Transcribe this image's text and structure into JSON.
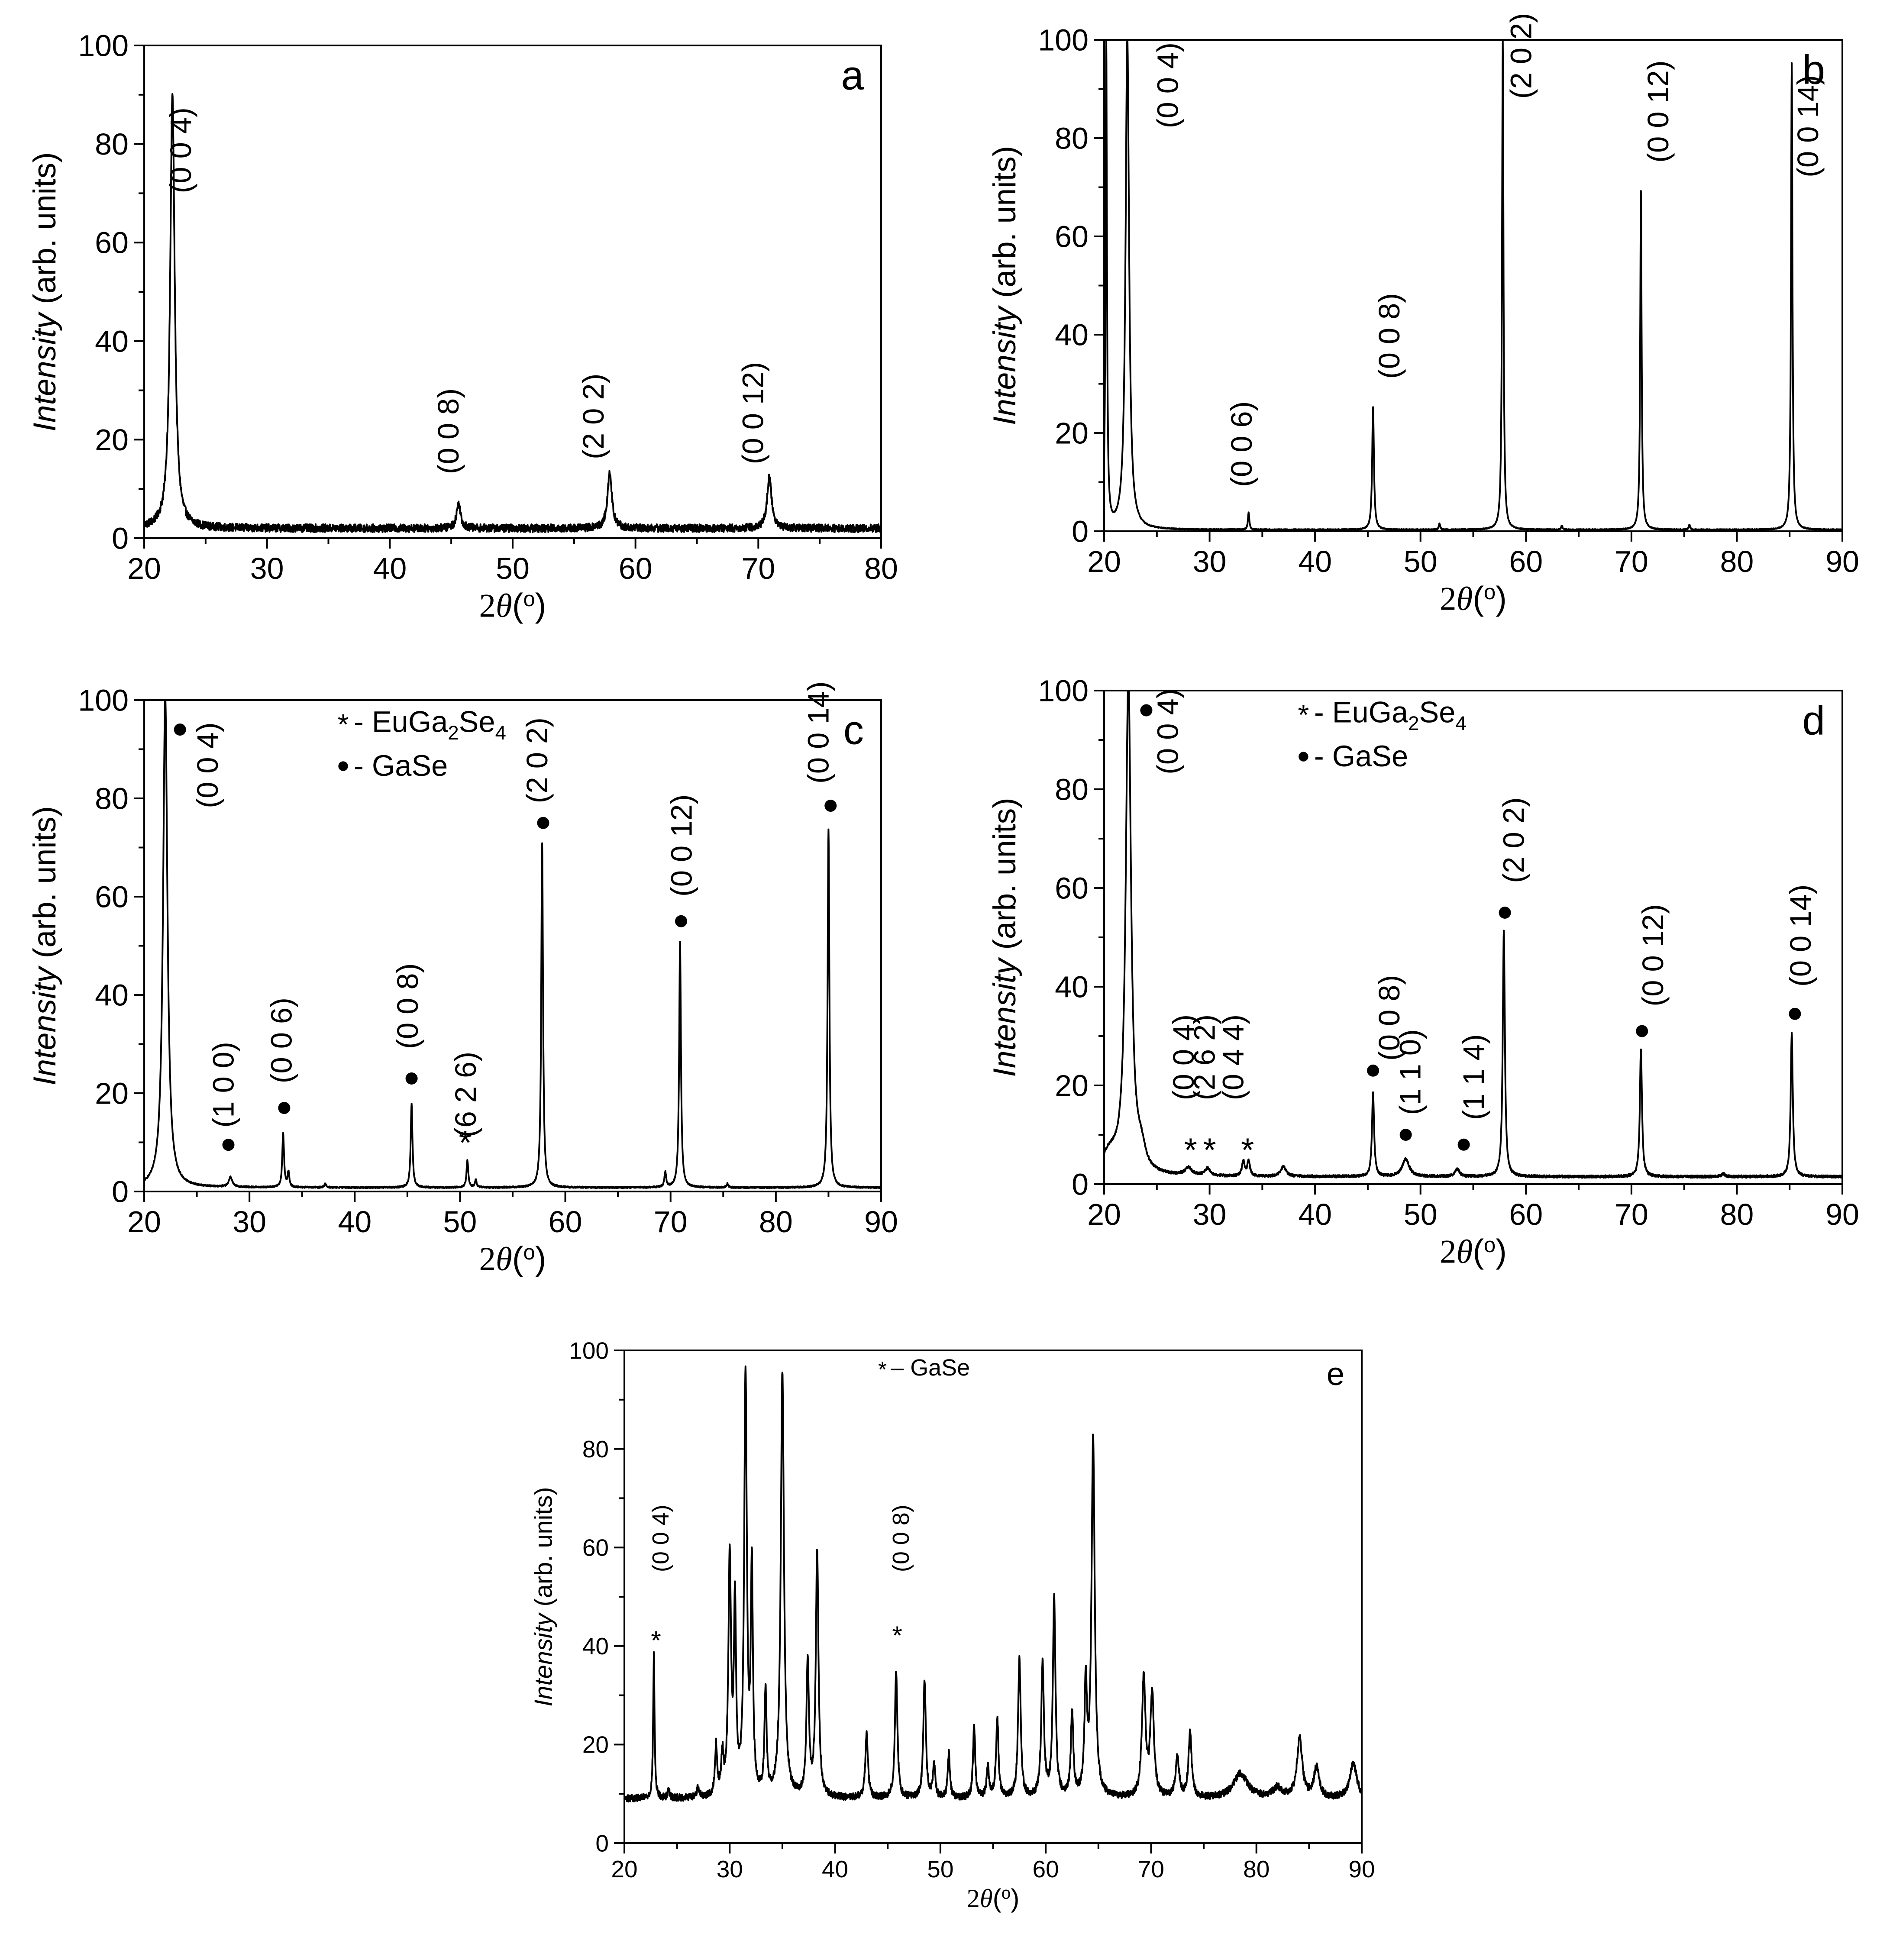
{
  "figure": {
    "description_note": "Five XRD pattern panels (a–e)"
  },
  "chart_data": [
    {
      "panel": "a",
      "type": "line",
      "xlabel_symbol": "2θ",
      "xlabel_unit": "(o)",
      "ylabel_italic": "Intensity",
      "ylabel_rest": " (arb. units)",
      "xlim": [
        20,
        80
      ],
      "ylim": [
        0,
        100
      ],
      "xticks": [
        20,
        30,
        40,
        50,
        60,
        70,
        80
      ],
      "yticks": [
        0,
        20,
        40,
        60,
        80,
        100
      ],
      "baseline": 2,
      "noise": 0.8,
      "peaks": [
        {
          "x": 22.3,
          "y": 88,
          "w": 0.22
        },
        {
          "x": 45.6,
          "y": 5,
          "w": 0.2
        },
        {
          "x": 57.9,
          "y": 11,
          "w": 0.22
        },
        {
          "x": 70.9,
          "y": 10.5,
          "w": 0.22
        }
      ],
      "annotations": [
        {
          "text": "(0 0 4)",
          "x": 23.8,
          "y": 70
        },
        {
          "text": "(0 0 8)",
          "x": 45.6,
          "y": 13
        },
        {
          "text": "(2 0 2)",
          "x": 57.4,
          "y": 16
        },
        {
          "text": "(0 0 12)",
          "x": 70.4,
          "y": 15
        }
      ],
      "markers": [],
      "legend": [],
      "panel_letter": "a"
    },
    {
      "panel": "b",
      "type": "line",
      "xlabel_symbol": "2θ",
      "xlabel_unit": "(o)",
      "ylabel_italic": "Intensity",
      "ylabel_rest": " (arb. units)",
      "xlim": [
        20,
        90
      ],
      "ylim": [
        0,
        100
      ],
      "xticks": [
        20,
        30,
        40,
        50,
        60,
        70,
        80,
        90
      ],
      "yticks": [
        0,
        20,
        40,
        60,
        80,
        100
      ],
      "baseline": 0.3,
      "noise": 0.1,
      "peaks": [
        {
          "x": 20.2,
          "y": 100,
          "w": 0.08
        },
        {
          "x": 22.2,
          "y": 100,
          "w": 0.2
        },
        {
          "x": 33.7,
          "y": 3.5,
          "w": 0.08
        },
        {
          "x": 45.5,
          "y": 25,
          "w": 0.1
        },
        {
          "x": 51.8,
          "y": 1.2,
          "w": 0.08
        },
        {
          "x": 57.8,
          "y": 100,
          "w": 0.08
        },
        {
          "x": 63.4,
          "y": 0.8,
          "w": 0.08
        },
        {
          "x": 70.9,
          "y": 69,
          "w": 0.08
        },
        {
          "x": 75.5,
          "y": 1.0,
          "w": 0.08
        },
        {
          "x": 85.2,
          "y": 95,
          "w": 0.08
        }
      ],
      "annotations": [
        {
          "text": "(0 0 4)",
          "x": 27.0,
          "y": 82
        },
        {
          "text": "(0 0 6)",
          "x": 34.0,
          "y": 9
        },
        {
          "text": "(0 0 8)",
          "x": 48.0,
          "y": 31
        },
        {
          "text": "(2 0 2)",
          "x": 60.5,
          "y": 88
        },
        {
          "text": "(0 0 12)",
          "x": 73.5,
          "y": 75
        },
        {
          "text": "(0 0 14)",
          "x": 87.7,
          "y": 72
        }
      ],
      "markers": [],
      "legend": [],
      "panel_letter": "b"
    },
    {
      "panel": "c",
      "type": "line",
      "xlabel_symbol": "2θ",
      "xlabel_unit": "(o)",
      "ylabel_italic": "Intensity",
      "ylabel_rest": " (arb. units)",
      "xlim": [
        20,
        90
      ],
      "ylim": [
        0,
        100
      ],
      "xticks": [
        20,
        30,
        40,
        50,
        60,
        70,
        80,
        90
      ],
      "yticks": [
        0,
        20,
        40,
        60,
        80,
        100
      ],
      "baseline": 0.8,
      "noise": 0.15,
      "peaks": [
        {
          "x": 22.0,
          "y": 100,
          "w": 0.25
        },
        {
          "x": 28.2,
          "y": 2.0,
          "w": 0.2
        },
        {
          "x": 33.2,
          "y": 11,
          "w": 0.1
        },
        {
          "x": 33.7,
          "y": 3,
          "w": 0.1
        },
        {
          "x": 37.2,
          "y": 0.8,
          "w": 0.1
        },
        {
          "x": 45.4,
          "y": 17,
          "w": 0.1
        },
        {
          "x": 50.7,
          "y": 5.5,
          "w": 0.1
        },
        {
          "x": 51.5,
          "y": 1.5,
          "w": 0.1
        },
        {
          "x": 57.8,
          "y": 70,
          "w": 0.1
        },
        {
          "x": 69.5,
          "y": 3,
          "w": 0.1
        },
        {
          "x": 70.9,
          "y": 50,
          "w": 0.1
        },
        {
          "x": 75.4,
          "y": 0.8,
          "w": 0.1
        },
        {
          "x": 85.0,
          "y": 73,
          "w": 0.1
        }
      ],
      "annotations": [
        {
          "text": "(0 0 4)",
          "x": 27.0,
          "y": 78
        },
        {
          "text": "(1 0 0)",
          "x": 28.5,
          "y": 13
        },
        {
          "text": "(0 0 6)",
          "x": 34.0,
          "y": 22
        },
        {
          "text": "(0 0 8)",
          "x": 46.0,
          "y": 29
        },
        {
          "text": "(6 2 6)",
          "x": 51.5,
          "y": 11
        },
        {
          "text": "(2 0 2)",
          "x": 58.3,
          "y": 79
        },
        {
          "text": "(0 0 12)",
          "x": 72.0,
          "y": 60
        },
        {
          "text": "(0 0 14)",
          "x": 85.0,
          "y": 83
        }
      ],
      "markers": [
        {
          "sym": "●",
          "x": 23.4,
          "y": 94
        },
        {
          "sym": "●",
          "x": 28.0,
          "y": 9.5
        },
        {
          "sym": "●",
          "x": 33.3,
          "y": 17
        },
        {
          "sym": "●",
          "x": 45.4,
          "y": 23
        },
        {
          "sym": "*",
          "x": 50.5,
          "y": 11
        },
        {
          "sym": "●",
          "x": 57.9,
          "y": 75
        },
        {
          "sym": "●",
          "x": 71.0,
          "y": 55
        },
        {
          "sym": "●",
          "x": 85.2,
          "y": 78.5
        }
      ],
      "legend": [
        {
          "sym": "*",
          "text": " - EuGa",
          "sub": "2",
          "text2": "Se",
          "sub2": "4"
        },
        {
          "sym": "●",
          "text": " - GaSe",
          "sub": "",
          "text2": "",
          "sub2": ""
        }
      ],
      "panel_letter": "c"
    },
    {
      "panel": "d",
      "type": "line",
      "xlabel_symbol": "2θ",
      "xlabel_unit": "(o)",
      "ylabel_italic": "Intensity",
      "ylabel_rest": " (arb. units)",
      "xlim": [
        20,
        90
      ],
      "ylim": [
        0,
        100
      ],
      "xticks": [
        20,
        30,
        40,
        50,
        60,
        70,
        80,
        90
      ],
      "yticks": [
        0,
        20,
        40,
        60,
        80,
        100
      ],
      "baseline": 1.5,
      "noise": 0.25,
      "peaks": [
        {
          "x": 20.5,
          "y": 4,
          "w": 1.0
        },
        {
          "x": 22.3,
          "y": 100,
          "w": 0.3
        },
        {
          "x": 23.5,
          "y": 4,
          "w": 0.5
        },
        {
          "x": 28.0,
          "y": 1.5,
          "w": 0.4
        },
        {
          "x": 29.8,
          "y": 1.5,
          "w": 0.3
        },
        {
          "x": 33.2,
          "y": 3,
          "w": 0.15
        },
        {
          "x": 33.7,
          "y": 3,
          "w": 0.15
        },
        {
          "x": 37.0,
          "y": 2,
          "w": 0.3
        },
        {
          "x": 45.5,
          "y": 17,
          "w": 0.12
        },
        {
          "x": 48.6,
          "y": 3.5,
          "w": 0.4
        },
        {
          "x": 53.5,
          "y": 1.5,
          "w": 0.25
        },
        {
          "x": 57.9,
          "y": 50,
          "w": 0.12
        },
        {
          "x": 70.9,
          "y": 26,
          "w": 0.12
        },
        {
          "x": 78.7,
          "y": 0.6,
          "w": 0.2
        },
        {
          "x": 85.2,
          "y": 29,
          "w": 0.12
        }
      ],
      "annotations": [
        {
          "text": "(0 0 4)",
          "x": 27.0,
          "y": 83
        },
        {
          "text": "(0 0 4)",
          "x": 28.5,
          "y": 17
        },
        {
          "text": "(2 6 2)",
          "x": 30.5,
          "y": 17
        },
        {
          "text": "(0 4 4)",
          "x": 33.2,
          "y": 17
        },
        {
          "text": "(0 0 8)",
          "x": 48.0,
          "y": 25
        },
        {
          "text": "(1 1 0)",
          "x": 50.0,
          "y": 14
        },
        {
          "text": "(1 1 4)",
          "x": 56.0,
          "y": 13
        },
        {
          "text": "(2 0 2)",
          "x": 59.8,
          "y": 61
        },
        {
          "text": "(0 0 12)",
          "x": 73.0,
          "y": 36
        },
        {
          "text": "(0 0 14)",
          "x": 87.0,
          "y": 40
        }
      ],
      "markers": [
        {
          "sym": "●",
          "x": 24.0,
          "y": 96
        },
        {
          "sym": "*",
          "x": 28.2,
          "y": 8
        },
        {
          "sym": "*",
          "x": 30.0,
          "y": 8
        },
        {
          "sym": "*",
          "x": 33.6,
          "y": 8
        },
        {
          "sym": "●",
          "x": 45.5,
          "y": 23
        },
        {
          "sym": "●",
          "x": 48.6,
          "y": 10
        },
        {
          "sym": "●",
          "x": 54.1,
          "y": 8
        },
        {
          "sym": "●",
          "x": 58.0,
          "y": 55
        },
        {
          "sym": "●",
          "x": 71.0,
          "y": 31
        },
        {
          "sym": "●",
          "x": 85.5,
          "y": 34.5
        }
      ],
      "legend": [
        {
          "sym": "*",
          "text": " - EuGa",
          "sub": "2",
          "text2": "Se",
          "sub2": "4"
        },
        {
          "sym": "●",
          "text": " - GaSe",
          "sub": "",
          "text2": "",
          "sub2": ""
        }
      ],
      "panel_letter": "d"
    },
    {
      "panel": "e",
      "type": "line",
      "xlabel_symbol": "2θ",
      "xlabel_unit": "(o)",
      "ylabel_italic": "Intensity",
      "ylabel_rest": " (arb. units)",
      "xlim": [
        20,
        90
      ],
      "ylim": [
        0,
        100
      ],
      "xticks": [
        20,
        30,
        40,
        50,
        60,
        70,
        80,
        90
      ],
      "yticks": [
        0,
        20,
        40,
        60,
        80,
        100
      ],
      "baseline": 9,
      "noise": 0.7,
      "peaks": [
        {
          "x": 22.8,
          "y": 29,
          "w": 0.08
        },
        {
          "x": 24.2,
          "y": 2,
          "w": 0.1
        },
        {
          "x": 27.0,
          "y": 2,
          "w": 0.15
        },
        {
          "x": 28.7,
          "y": 10,
          "w": 0.12
        },
        {
          "x": 29.3,
          "y": 8,
          "w": 0.12
        },
        {
          "x": 30.0,
          "y": 48,
          "w": 0.15
        },
        {
          "x": 30.5,
          "y": 38,
          "w": 0.12
        },
        {
          "x": 31.5,
          "y": 85,
          "w": 0.15
        },
        {
          "x": 32.1,
          "y": 45,
          "w": 0.12
        },
        {
          "x": 33.4,
          "y": 21,
          "w": 0.12
        },
        {
          "x": 35.0,
          "y": 86,
          "w": 0.18
        },
        {
          "x": 37.4,
          "y": 27,
          "w": 0.14
        },
        {
          "x": 38.3,
          "y": 50,
          "w": 0.15
        },
        {
          "x": 43.0,
          "y": 13,
          "w": 0.15
        },
        {
          "x": 45.8,
          "y": 26,
          "w": 0.14
        },
        {
          "x": 48.5,
          "y": 24,
          "w": 0.14
        },
        {
          "x": 49.4,
          "y": 7,
          "w": 0.12
        },
        {
          "x": 50.8,
          "y": 9,
          "w": 0.12
        },
        {
          "x": 53.2,
          "y": 15,
          "w": 0.12
        },
        {
          "x": 54.5,
          "y": 6,
          "w": 0.14
        },
        {
          "x": 55.4,
          "y": 16,
          "w": 0.14
        },
        {
          "x": 57.5,
          "y": 28,
          "w": 0.15
        },
        {
          "x": 59.7,
          "y": 27,
          "w": 0.15
        },
        {
          "x": 60.8,
          "y": 40,
          "w": 0.15
        },
        {
          "x": 62.5,
          "y": 17,
          "w": 0.14
        },
        {
          "x": 63.8,
          "y": 22,
          "w": 0.14
        },
        {
          "x": 64.5,
          "y": 73,
          "w": 0.18
        },
        {
          "x": 69.3,
          "y": 24,
          "w": 0.2
        },
        {
          "x": 70.1,
          "y": 21,
          "w": 0.2
        },
        {
          "x": 72.5,
          "y": 8,
          "w": 0.2
        },
        {
          "x": 73.7,
          "y": 13,
          "w": 0.18
        },
        {
          "x": 78.5,
          "y": 5,
          "w": 0.8
        },
        {
          "x": 82.0,
          "y": 2,
          "w": 0.5
        },
        {
          "x": 84.1,
          "y": 12,
          "w": 0.3
        },
        {
          "x": 85.7,
          "y": 6,
          "w": 0.3
        },
        {
          "x": 89.2,
          "y": 7,
          "w": 0.4
        }
      ],
      "annotations": [
        {
          "text": "(0 0 4)",
          "x": 24.2,
          "y": 55
        },
        {
          "text": "(0 0 8)",
          "x": 47.0,
          "y": 55
        }
      ],
      "markers": [
        {
          "sym": "*",
          "x": 23.0,
          "y": 42
        },
        {
          "sym": "*",
          "x": 45.9,
          "y": 43
        }
      ],
      "legend": [
        {
          "sym": "*",
          "text": " – GaSe",
          "sub": "",
          "text2": "",
          "sub2": ""
        }
      ],
      "panel_letter": "e"
    }
  ]
}
